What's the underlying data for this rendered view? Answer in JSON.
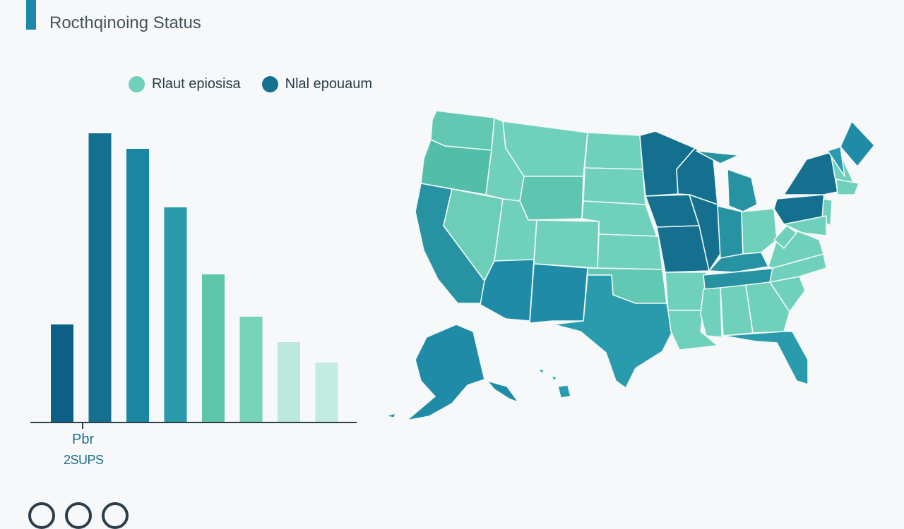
{
  "header": {
    "title": "",
    "subtitle": "Rocthqinoing Status"
  },
  "legend": {
    "items": [
      {
        "label": "Rlaut epiosisa",
        "color": "#6fd0bc"
      },
      {
        "label": "Nlal epouaum",
        "color": "#15708f"
      }
    ]
  },
  "colors": {
    "dark": "#15708f",
    "mid": "#2a9bac",
    "light": "#6fd0bc",
    "pale": "#bbe9db",
    "deep": "#0e5f86"
  },
  "chart_data": [
    {
      "type": "bar",
      "categories": [
        "",
        "",
        "",
        "",
        "",
        "",
        "",
        ""
      ],
      "values": [
        139,
        410,
        388,
        305,
        210,
        150,
        114,
        85
      ],
      "ylim": [
        0,
        440
      ],
      "xlabel": "Pbr",
      "xsublabel": "2SUPS",
      "grid": false
    },
    {
      "type": "heatmap",
      "map": "United States (choropleth by state)",
      "legend_placement": "top"
    }
  ]
}
